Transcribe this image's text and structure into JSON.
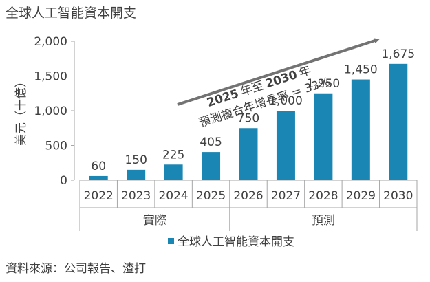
{
  "chart_data": {
    "type": "bar",
    "title": "全球人工智能資本開支",
    "ylabel": "美元（十億）",
    "categories": [
      "2022",
      "2023",
      "2024",
      "2025",
      "2026",
      "2027",
      "2028",
      "2029",
      "2030"
    ],
    "series": [
      {
        "name": "全球人工智能資本開支",
        "values": [
          60,
          150,
          225,
          405,
          750,
          1000,
          1250,
          1450,
          1675
        ]
      }
    ],
    "data_labels": [
      "60",
      "150",
      "225",
      "405",
      "750",
      "1,000",
      "1,250",
      "1,450",
      "1,675"
    ],
    "ylim": [
      0,
      2000
    ],
    "yticks": [
      0,
      500,
      1000,
      1500,
      2000
    ],
    "ytick_labels": [
      "0",
      "500",
      "1,000",
      "1,500",
      "2,000"
    ],
    "groups": [
      {
        "label": "實際",
        "categories": [
          "2022",
          "2023",
          "2024",
          "2025"
        ]
      },
      {
        "label": "預測",
        "categories": [
          "2026",
          "2027",
          "2028",
          "2029",
          "2030"
        ]
      }
    ],
    "annotation": {
      "line1_a": "2025",
      "line1_b": "年至",
      "line1_c": "2030",
      "line1_d": "年",
      "line2": "預測複合年增長率 = 33%"
    },
    "legend_position": "bottom",
    "grid": false,
    "bar_color": "#1a86b3"
  },
  "source": "資料來源：公司報告、渣打"
}
